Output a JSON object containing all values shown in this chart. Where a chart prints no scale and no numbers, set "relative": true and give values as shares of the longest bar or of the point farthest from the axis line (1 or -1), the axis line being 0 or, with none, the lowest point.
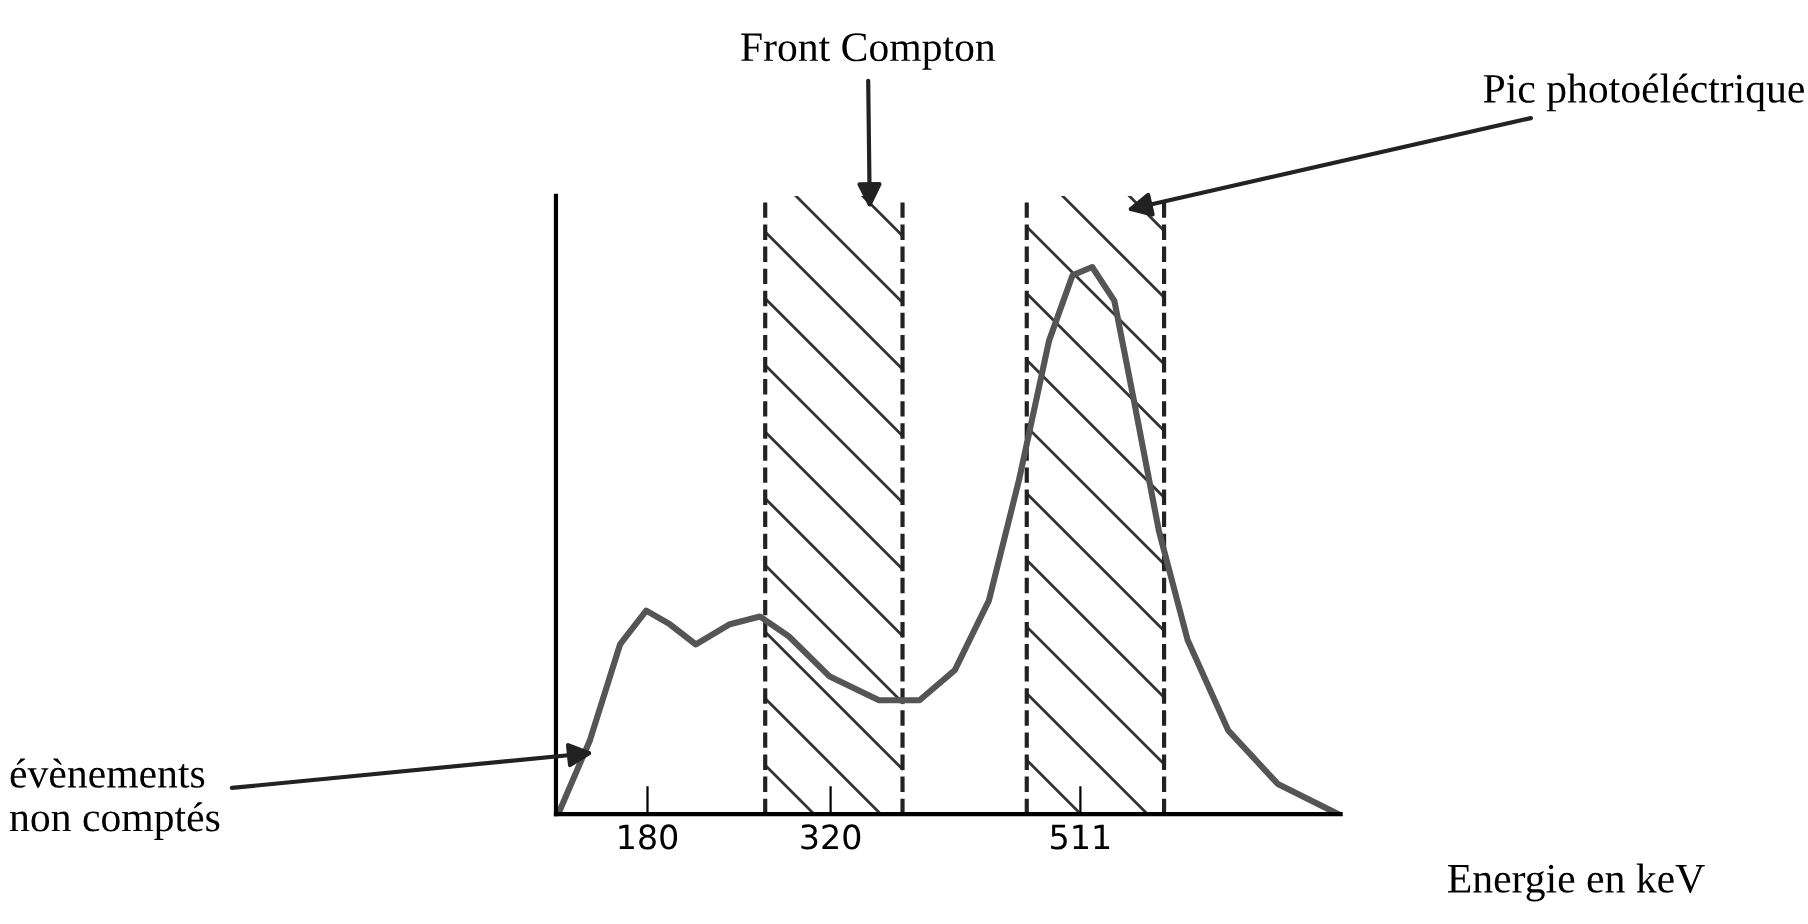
{
  "chart_data": {
    "type": "line",
    "relative": true,
    "xlabel": "Energie en keV",
    "xlim": [
      110,
      710
    ],
    "xticks": [
      180,
      320,
      511
    ],
    "series": [
      {
        "color": "#555555",
        "x": [
          113,
          136,
          159,
          179,
          197,
          217,
          243,
          266,
          288,
          319,
          357,
          388,
          415,
          441,
          464,
          487,
          505,
          520,
          537,
          552,
          571,
          593,
          624,
          662,
          708
        ],
        "values": [
          0.007,
          0.135,
          0.31,
          0.372,
          0.347,
          0.31,
          0.347,
          0.361,
          0.325,
          0.252,
          0.208,
          0.208,
          0.263,
          0.39,
          0.61,
          0.865,
          0.985,
          1.0,
          0.938,
          0.755,
          0.518,
          0.318,
          0.153,
          0.055,
          0
        ]
      }
    ],
    "bands": [
      {
        "axis": "x",
        "from": 270,
        "to": 375
      },
      {
        "axis": "x",
        "from": 470,
        "to": 575
      }
    ],
    "annotations": [
      "Front Compton",
      "Pic photoéléctrique",
      "évènements\nnon comptés"
    ],
    "grid": false,
    "legend": false,
    "marker": "none",
    "line_style": "solid"
  }
}
